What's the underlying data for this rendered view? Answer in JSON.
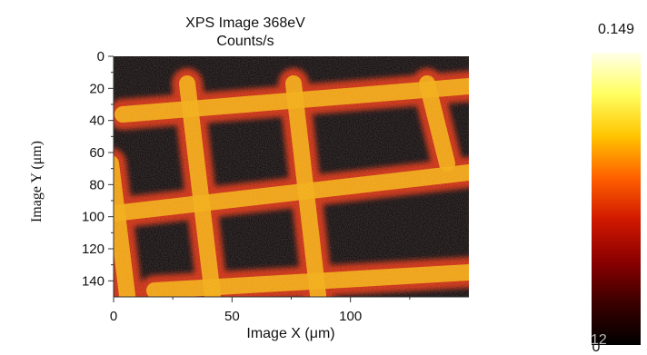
{
  "chart_data": {
    "type": "heatmap",
    "title": "XPS Image 368eV",
    "subtitle": "Counts/s",
    "xlabel": "Image X (μm)",
    "ylabel": "Image Y (μm)",
    "x_ticks": [
      0,
      50,
      100
    ],
    "y_ticks": [
      0,
      20,
      40,
      60,
      80,
      100,
      120,
      140
    ],
    "xlim": [
      0,
      150
    ],
    "ylim": [
      0,
      150
    ],
    "y_inverted": true,
    "content_description": "bright grid-like mesh pattern (2 vertical and 2 horizontal bright bars, rotated slightly) on dark background",
    "colorbar": {
      "max_label": "0.149",
      "min_label": "0",
      "colormap": [
        "#000000",
        "#3a0000",
        "#8b0000",
        "#d01800",
        "#ff6000",
        "#ffc400",
        "#ffff60",
        "#ffffe8"
      ]
    },
    "grid": false
  },
  "slide_number": "12"
}
